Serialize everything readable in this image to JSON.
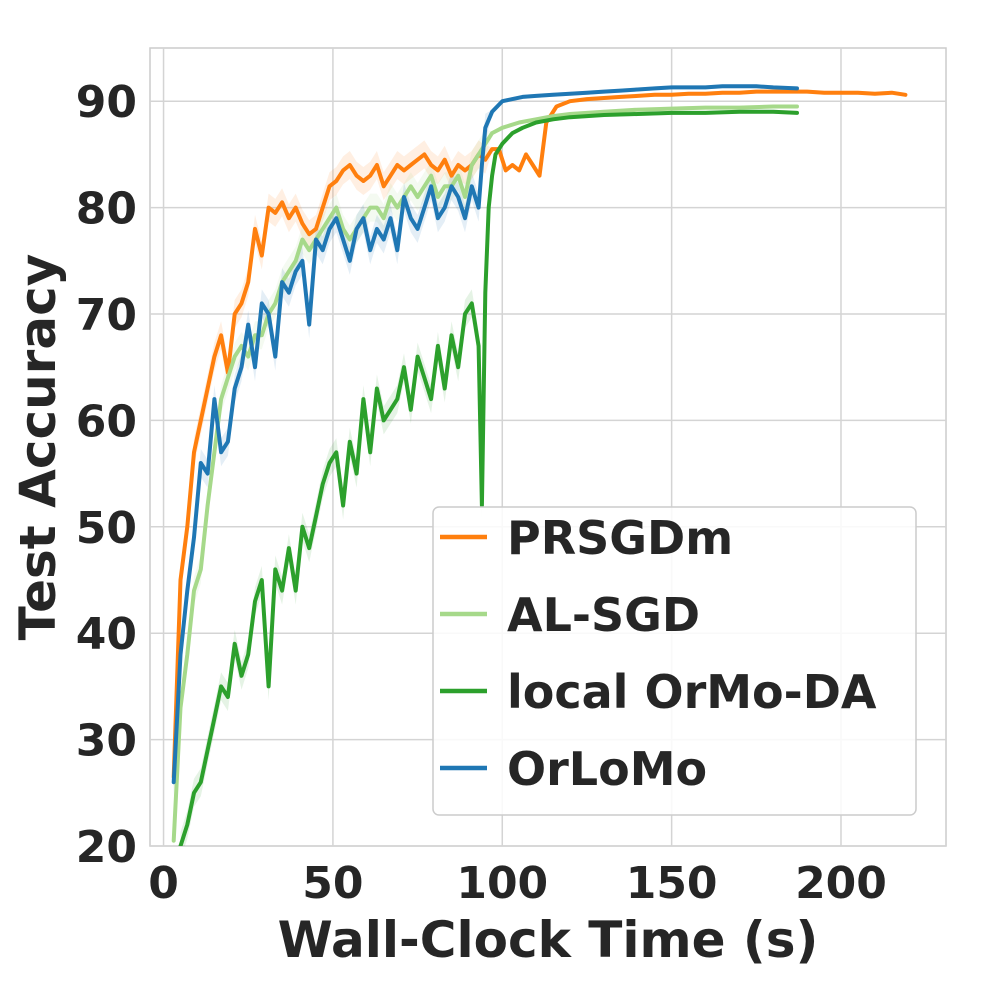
{
  "chart_data": {
    "type": "line",
    "title": "",
    "xlabel": "Wall-Clock Time (s)",
    "ylabel": "Test Accuracy",
    "xlim": [
      -4,
      231
    ],
    "ylim": [
      20,
      95
    ],
    "xticks": [
      0,
      50,
      100,
      150,
      200
    ],
    "yticks": [
      20,
      30,
      40,
      50,
      60,
      70,
      80,
      90
    ],
    "grid": true,
    "legend_position": "bottom-right",
    "series": [
      {
        "name": "PRSGDm",
        "color": "#ff7f0e",
        "x": [
          3,
          5,
          7,
          9,
          11,
          13,
          15,
          17,
          19,
          21,
          23,
          25,
          27,
          29,
          31,
          33,
          35,
          37,
          39,
          41,
          43,
          45,
          47,
          49,
          51,
          53,
          55,
          57,
          59,
          61,
          63,
          65,
          67,
          69,
          71,
          73,
          75,
          77,
          79,
          81,
          83,
          85,
          87,
          89,
          91,
          93,
          95,
          97,
          99,
          101,
          103,
          105,
          107,
          109,
          111,
          113,
          116,
          120,
          125,
          130,
          135,
          140,
          145,
          150,
          155,
          160,
          165,
          170,
          175,
          180,
          185,
          190,
          195,
          200,
          205,
          210,
          215,
          219
        ],
        "y": [
          26.5,
          45,
          50,
          57,
          60,
          63,
          66,
          68,
          64.5,
          70,
          71,
          73,
          78,
          75.5,
          80,
          79.5,
          80.5,
          79,
          80,
          78.5,
          77.5,
          78,
          80,
          82,
          82.5,
          83.5,
          84,
          83,
          82.5,
          83,
          84,
          82,
          83,
          84,
          83.5,
          84,
          84.5,
          85,
          84,
          83.5,
          84.5,
          83,
          84,
          83.5,
          84,
          85,
          84.5,
          85.5,
          85.5,
          83.5,
          84,
          83.5,
          85,
          84,
          83,
          88,
          89.5,
          90,
          90.2,
          90.3,
          90.4,
          90.5,
          90.6,
          90.6,
          90.7,
          90.7,
          90.8,
          90.8,
          90.9,
          90.9,
          90.9,
          90.9,
          90.8,
          90.8,
          90.8,
          90.7,
          90.8,
          90.6
        ]
      },
      {
        "name": "AL-SGD",
        "color": "#a6d98a",
        "x": [
          3,
          5,
          7,
          9,
          11,
          13,
          15,
          17,
          19,
          21,
          23,
          25,
          27,
          29,
          31,
          33,
          35,
          37,
          39,
          41,
          43,
          45,
          47,
          49,
          51,
          53,
          55,
          57,
          59,
          61,
          63,
          65,
          67,
          69,
          71,
          73,
          75,
          77,
          79,
          81,
          83,
          85,
          87,
          89,
          91,
          93,
          95,
          97,
          100,
          105,
          110,
          115,
          120,
          130,
          140,
          150,
          160,
          170,
          180,
          187
        ],
        "y": [
          20.5,
          33,
          38,
          44,
          46,
          52,
          57,
          62,
          64,
          66,
          67,
          66,
          68,
          68,
          70,
          71,
          73,
          74,
          75,
          77,
          76,
          77,
          78,
          79,
          80,
          78,
          77,
          78,
          79,
          80,
          80,
          79,
          81,
          80,
          81,
          82,
          81,
          82,
          83,
          81,
          82,
          82,
          83,
          81,
          84,
          85,
          86,
          87,
          87.5,
          88,
          88.3,
          88.6,
          88.8,
          89,
          89.2,
          89.3,
          89.4,
          89.4,
          89.5,
          89.5
        ]
      },
      {
        "name": "local OrMo-DA",
        "color": "#2ca02c",
        "x": [
          5,
          7,
          9,
          11,
          13,
          15,
          17,
          19,
          21,
          23,
          25,
          27,
          29,
          31,
          33,
          35,
          37,
          39,
          41,
          43,
          45,
          47,
          49,
          51,
          53,
          55,
          57,
          59,
          61,
          63,
          65,
          67,
          69,
          71,
          73,
          75,
          77,
          79,
          81,
          83,
          85,
          87,
          89,
          91,
          93,
          94,
          95,
          96,
          97,
          98,
          100,
          103,
          106,
          110,
          115,
          120,
          130,
          140,
          150,
          160,
          170,
          180,
          187
        ],
        "y": [
          20,
          22,
          25,
          26,
          29,
          32,
          35,
          34,
          39,
          36,
          38,
          43,
          45,
          35,
          46,
          44,
          48,
          44,
          50,
          48,
          51,
          54,
          56,
          57,
          52,
          58,
          55,
          62,
          57,
          63,
          60,
          61,
          62,
          65,
          61,
          66,
          64,
          62,
          67,
          63,
          68,
          65,
          70,
          71,
          67,
          52,
          72,
          80,
          83,
          85,
          86,
          87,
          87.5,
          88,
          88.3,
          88.5,
          88.7,
          88.8,
          88.9,
          88.9,
          89,
          89,
          88.9
        ]
      },
      {
        "name": "OrLoMo",
        "color": "#1f77b4",
        "x": [
          3,
          5,
          7,
          9,
          11,
          13,
          15,
          17,
          19,
          21,
          23,
          25,
          27,
          29,
          31,
          33,
          35,
          37,
          39,
          41,
          43,
          45,
          47,
          49,
          51,
          53,
          55,
          57,
          59,
          61,
          63,
          65,
          67,
          69,
          71,
          73,
          75,
          77,
          79,
          81,
          83,
          85,
          87,
          89,
          91,
          93,
          94,
          95,
          97,
          100,
          103,
          106,
          110,
          115,
          120,
          125,
          130,
          135,
          140,
          145,
          150,
          155,
          160,
          165,
          170,
          175,
          180,
          187
        ],
        "y": [
          26,
          38,
          44,
          49,
          56,
          55,
          62,
          57,
          58,
          63,
          65,
          69,
          65,
          71,
          70,
          66,
          73,
          72,
          74,
          75,
          69,
          77,
          76,
          78,
          79,
          77,
          75,
          78,
          79,
          76,
          78,
          77,
          79,
          76,
          81,
          79,
          78,
          80,
          82,
          79,
          80,
          82,
          81,
          79,
          82,
          80,
          84,
          87.5,
          89,
          90,
          90.2,
          90.4,
          90.5,
          90.6,
          90.7,
          90.8,
          90.9,
          91,
          91.1,
          91.2,
          91.3,
          91.3,
          91.3,
          91.4,
          91.4,
          91.4,
          91.3,
          91.2
        ]
      }
    ]
  }
}
